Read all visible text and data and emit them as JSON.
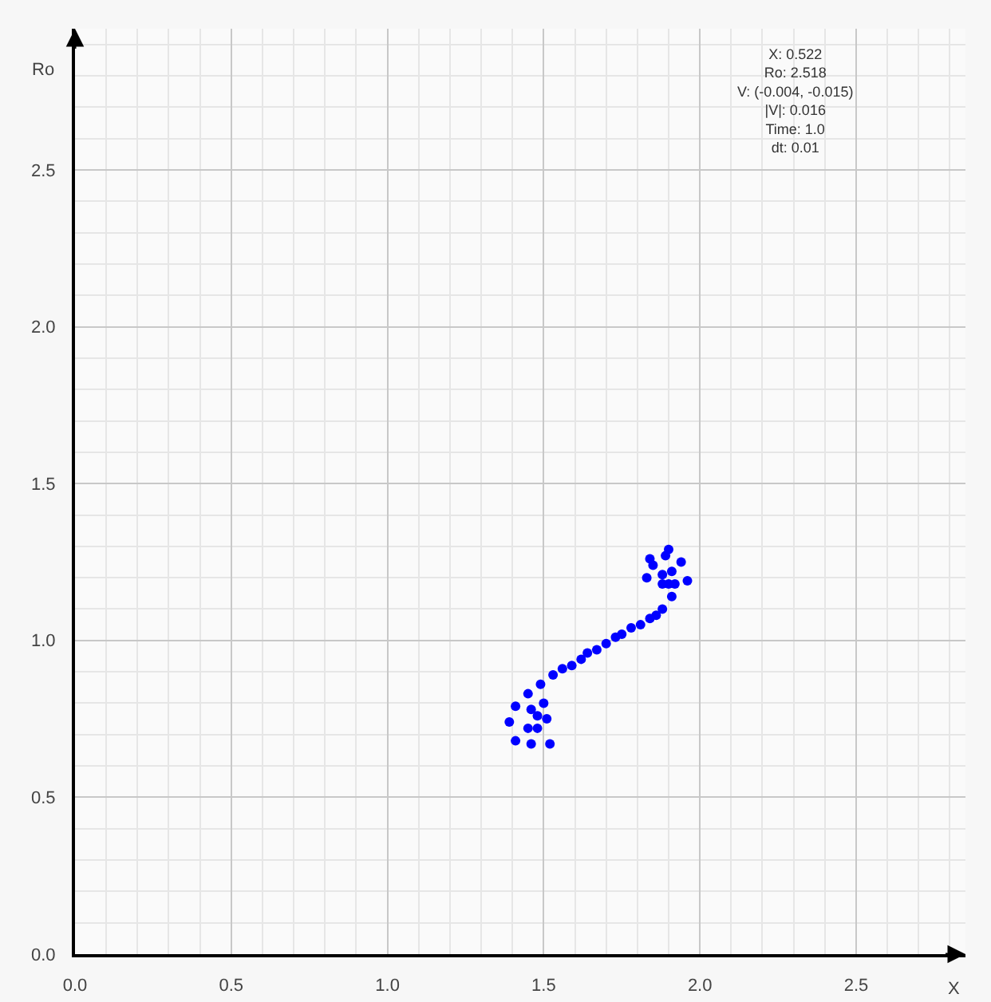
{
  "chart_data": {
    "type": "scatter",
    "xlabel": "X",
    "ylabel": "Ro",
    "xlim": [
      0,
      2.85
    ],
    "ylim": [
      0,
      2.95
    ],
    "xticks": [
      {
        "value": 0,
        "label": "0.0"
      },
      0.5,
      {
        "value": 1,
        "label": "1.0"
      },
      1.5,
      {
        "value": 2,
        "label": "2.0"
      },
      2.5
    ],
    "yticks": [
      {
        "value": 0,
        "label": "0.0"
      },
      0.5,
      {
        "value": 1,
        "label": "1.0"
      },
      1.5,
      {
        "value": 2,
        "label": "2.0"
      },
      2.5
    ],
    "grid": true,
    "marker": "circle",
    "annotations": [
      "X: 0.522",
      "Ro: 2.518",
      "V: (-0.004, -0.015)",
      "|V|: 0.016",
      "Time: 1.0",
      "dt: 0.01"
    ],
    "series": [
      {
        "color": "#0000ff",
        "x": [
          1.9,
          1.89,
          1.84,
          1.85,
          1.94,
          1.88,
          1.91,
          1.83,
          1.96,
          1.88,
          1.9,
          1.92,
          1.91,
          1.88,
          1.86,
          1.84,
          1.81,
          1.78,
          1.75,
          1.73,
          1.7,
          1.67,
          1.64,
          1.62,
          1.59,
          1.56,
          1.53,
          1.49,
          1.45,
          1.5,
          1.41,
          1.46,
          1.48,
          1.51,
          1.39,
          1.45,
          1.48,
          1.41,
          1.46,
          1.52
        ],
        "values": [
          1.29,
          1.27,
          1.26,
          1.24,
          1.25,
          1.21,
          1.22,
          1.2,
          1.19,
          1.18,
          1.18,
          1.18,
          1.14,
          1.1,
          1.08,
          1.07,
          1.05,
          1.04,
          1.02,
          1.01,
          0.99,
          0.97,
          0.96,
          0.94,
          0.92,
          0.91,
          0.89,
          0.86,
          0.83,
          0.8,
          0.79,
          0.78,
          0.76,
          0.75,
          0.74,
          0.72,
          0.72,
          0.68,
          0.67,
          0.67
        ]
      }
    ]
  }
}
